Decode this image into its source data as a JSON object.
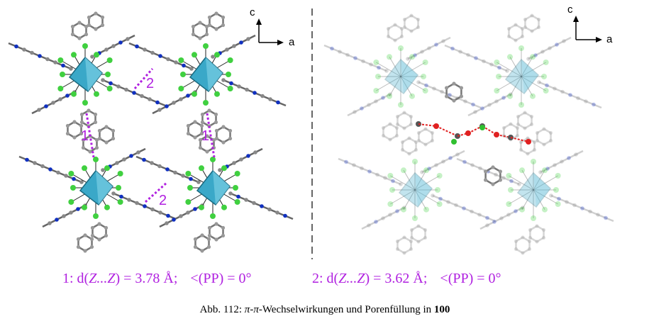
{
  "figure": {
    "left_panel": {
      "axis_c": "c",
      "axis_a": "a",
      "contacts": [
        "2",
        "1",
        "1",
        "2"
      ]
    },
    "right_panel": {
      "axis_c": "c",
      "axis_a": "a"
    },
    "measurements": [
      {
        "prefix": "1: d(",
        "atoms": "Z...Z",
        "rest": ") = 3.78 Å;",
        "angle": "<(PP) = 0°"
      },
      {
        "prefix": "2: d(",
        "atoms": "Z...Z",
        "rest": ") = 3.62 Å;",
        "angle": "<(PP) = 0°"
      }
    ],
    "caption": {
      "prefix": "Abb. 112: ",
      "pi1": "π",
      "dash": "-",
      "pi2": "π",
      "rest": "-Wechselwirkungen und Porenfüllung in ",
      "compound": "100"
    }
  }
}
